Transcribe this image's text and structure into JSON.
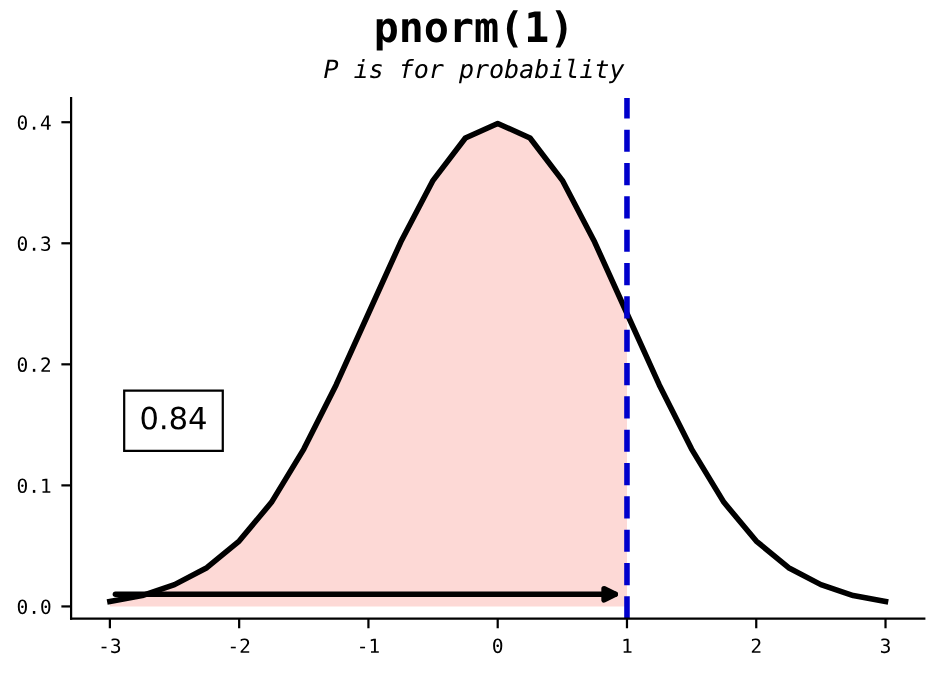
{
  "chart_data": {
    "type": "line",
    "title": "pnorm(1)",
    "subtitle": "P is for probability",
    "series": [
      {
        "type": "area",
        "color": "#fdd9d6",
        "x": [
          -3,
          -2.75,
          -2.5,
          -2.25,
          -2,
          -1.75,
          -1.5,
          -1.25,
          -1,
          -0.75,
          -0.5,
          -0.25,
          0,
          0.25,
          0.5,
          0.75,
          1
        ],
        "values": [
          0.004,
          0.009,
          0.018,
          0.032,
          0.054,
          0.086,
          0.13,
          0.183,
          0.242,
          0.301,
          0.352,
          0.387,
          0.399,
          0.387,
          0.352,
          0.301,
          0.242
        ]
      },
      {
        "color": "#000000",
        "x": [
          -3,
          -2.75,
          -2.5,
          -2.25,
          -2,
          -1.75,
          -1.5,
          -1.25,
          -1,
          -0.75,
          -0.5,
          -0.25,
          0,
          0.25,
          0.5,
          0.75,
          1,
          1.25,
          1.5,
          1.75,
          2,
          2.25,
          2.5,
          2.75,
          3
        ],
        "values": [
          0.004,
          0.009,
          0.018,
          0.032,
          0.054,
          0.086,
          0.13,
          0.183,
          0.242,
          0.301,
          0.352,
          0.387,
          0.399,
          0.387,
          0.352,
          0.301,
          0.242,
          0.183,
          0.13,
          0.086,
          0.054,
          0.032,
          0.018,
          0.009,
          0.004
        ]
      }
    ],
    "ref_lines": [
      {
        "axis": "x",
        "value": 1,
        "color": "#0000cc",
        "line_style": "dashed"
      }
    ],
    "annotations": [
      "0.84"
    ],
    "xlim": [
      -3.3,
      3.3
    ],
    "ylim": [
      -0.01,
      0.42
    ],
    "xticks": [
      -3,
      -2,
      -1,
      0,
      1,
      2,
      3
    ],
    "yticks": [
      {
        "value": 0,
        "label": "0.0"
      },
      {
        "value": 0.1,
        "label": "0.1"
      },
      {
        "value": 0.2,
        "label": "0.2"
      },
      {
        "value": 0.3,
        "label": "0.3"
      },
      {
        "value": 0.4,
        "label": "0.4"
      }
    ],
    "grid": false,
    "legend": false
  }
}
